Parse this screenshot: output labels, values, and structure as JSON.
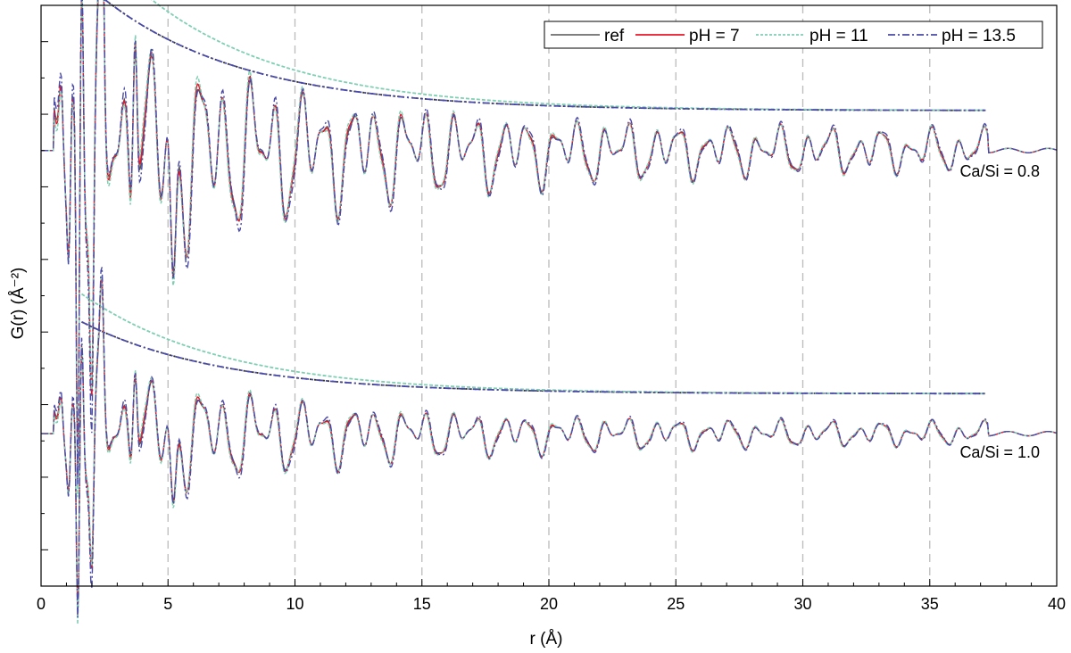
{
  "chart_data": {
    "type": "line",
    "title": "",
    "xlabel": "r (Å)",
    "ylabel": "G(r) (Å⁻²)",
    "xlim": [
      0,
      40
    ],
    "ylim": [
      -15,
      1
    ],
    "x_ticks": [
      0,
      5,
      10,
      15,
      20,
      25,
      30,
      35,
      40
    ],
    "y_ticks": [
      -14,
      -12,
      -10,
      -8,
      -6,
      -4,
      -2,
      0
    ],
    "vertical_gridlines": [
      5,
      10,
      15,
      20,
      25,
      30,
      35
    ],
    "grid": "vertical dashed",
    "legend_position": "top-right",
    "colors": {
      "ref": "#555555",
      "pH7": "#e8162a",
      "pH11": "#7fcfb2",
      "pH135": "#4a4aa8",
      "envelope_ref": "#333333",
      "grid": "#bbbbbb"
    },
    "series": [
      {
        "name": "ref",
        "style": "solid"
      },
      {
        "name": "pH = 7",
        "style": "solid"
      },
      {
        "name": "pH = 11",
        "style": "short-dash"
      },
      {
        "name": "pH = 13.5",
        "style": "dash-dot"
      }
    ],
    "panels": [
      {
        "label": "Ca/Si = 0.8",
        "baseline": -3.0
      },
      {
        "label": "Ca/Si = 1.0",
        "baseline": -10.8
      }
    ]
  }
}
